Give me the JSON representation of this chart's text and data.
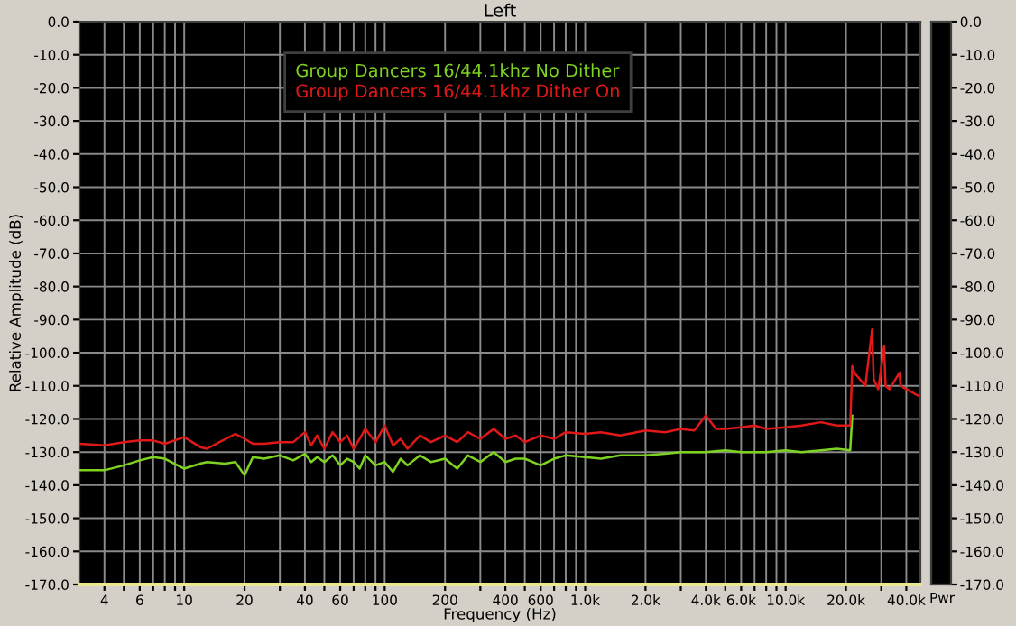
{
  "chart_data": {
    "type": "line",
    "title": "Left",
    "xlabel": "Frequency (Hz)",
    "ylabel": "Relative Amplitude (dB)",
    "log": "x",
    "grid": true,
    "legend": "top",
    "line_style": "solid",
    "marker": "none",
    "xlim": [
      3,
      47000
    ],
    "xticks": [
      {
        "value": 4,
        "label": "4"
      },
      {
        "value": 5,
        "label": null
      },
      {
        "value": 6,
        "label": "6"
      },
      {
        "value": 7,
        "label": null
      },
      {
        "value": 8,
        "label": null
      },
      {
        "value": 9,
        "label": null
      },
      {
        "value": 10,
        "label": "10"
      },
      {
        "value": 20,
        "label": "20"
      },
      {
        "value": 30,
        "label": null
      },
      {
        "value": 40,
        "label": "40"
      },
      {
        "value": 50,
        "label": null
      },
      {
        "value": 60,
        "label": "60"
      },
      {
        "value": 70,
        "label": null
      },
      {
        "value": 80,
        "label": null
      },
      {
        "value": 90,
        "label": null
      },
      {
        "value": 100,
        "label": "100"
      },
      {
        "value": 200,
        "label": "200"
      },
      {
        "value": 300,
        "label": null
      },
      {
        "value": 400,
        "label": "400"
      },
      {
        "value": 500,
        "label": null
      },
      {
        "value": 600,
        "label": "600"
      },
      {
        "value": 700,
        "label": null
      },
      {
        "value": 800,
        "label": null
      },
      {
        "value": 900,
        "label": null
      },
      {
        "value": 1000,
        "label": "1.0k"
      },
      {
        "value": 2000,
        "label": "2.0k"
      },
      {
        "value": 3000,
        "label": null
      },
      {
        "value": 4000,
        "label": "4.0k"
      },
      {
        "value": 5000,
        "label": null
      },
      {
        "value": 6000,
        "label": "6.0k"
      },
      {
        "value": 7000,
        "label": null
      },
      {
        "value": 8000,
        "label": null
      },
      {
        "value": 9000,
        "label": null
      },
      {
        "value": 10000,
        "label": "10.0k"
      },
      {
        "value": 20000,
        "label": "20.0k"
      },
      {
        "value": 30000,
        "label": null
      },
      {
        "value": 40000,
        "label": "40.0k"
      }
    ],
    "ylim": [
      -170,
      0
    ],
    "yticks": [
      {
        "value": 0,
        "label": "0.0"
      },
      {
        "value": -10,
        "label": "-10.0"
      },
      {
        "value": -20,
        "label": "-20.0"
      },
      {
        "value": -30,
        "label": "-30.0"
      },
      {
        "value": -40,
        "label": "-40.0"
      },
      {
        "value": -50,
        "label": "-50.0"
      },
      {
        "value": -60,
        "label": "-60.0"
      },
      {
        "value": -70,
        "label": "-70.0"
      },
      {
        "value": -80,
        "label": "-80.0"
      },
      {
        "value": -90,
        "label": "-90.0"
      },
      {
        "value": -100,
        "label": "-100.0"
      },
      {
        "value": -110,
        "label": "-110.0"
      },
      {
        "value": -120,
        "label": "-120.0"
      },
      {
        "value": -130,
        "label": "-130.0"
      },
      {
        "value": -140,
        "label": "-140.0"
      },
      {
        "value": -150,
        "label": "-150.0"
      },
      {
        "value": -160,
        "label": "-160.0"
      },
      {
        "value": -170,
        "label": "-170.0"
      }
    ],
    "y2lim": [
      -170,
      0
    ],
    "y2ticks": [
      {
        "value": 0,
        "label": "0.0"
      },
      {
        "value": -10,
        "label": "-10.0"
      },
      {
        "value": -20,
        "label": "-20.0"
      },
      {
        "value": -30,
        "label": "-30.0"
      },
      {
        "value": -40,
        "label": "-40.0"
      },
      {
        "value": -50,
        "label": "-50.0"
      },
      {
        "value": -60,
        "label": "-60.0"
      },
      {
        "value": -70,
        "label": "-70.0"
      },
      {
        "value": -80,
        "label": "-80.0"
      },
      {
        "value": -90,
        "label": "-90.0"
      },
      {
        "value": -100,
        "label": "-100.0"
      },
      {
        "value": -110,
        "label": "-110.0"
      },
      {
        "value": -120,
        "label": "-120.0"
      },
      {
        "value": -130,
        "label": "-130.0"
      },
      {
        "value": -140,
        "label": "-140.0"
      },
      {
        "value": -150,
        "label": "-150.0"
      },
      {
        "value": -160,
        "label": "-160.0"
      },
      {
        "value": -170,
        "label": "-170.0"
      }
    ],
    "annotations": [
      "Pwr"
    ],
    "series": [
      {
        "name": "Group Dancers 16/44.1khz No Dither",
        "color": "#7ed321",
        "x": [
          3,
          4,
          5,
          6,
          7,
          8,
          10,
          12,
          13,
          16,
          18,
          20,
          22,
          25,
          30,
          35,
          40,
          43,
          46,
          50,
          55,
          60,
          65,
          70,
          75,
          80,
          90,
          100,
          110,
          120,
          130,
          150,
          170,
          200,
          230,
          260,
          300,
          350,
          400,
          450,
          500,
          600,
          700,
          800,
          1000,
          1200,
          1500,
          2000,
          2500,
          3000,
          4000,
          5000,
          6000,
          8000,
          10000,
          12000,
          15000,
          18000,
          21000,
          21500
        ],
        "values": [
          -135.5,
          -135.5,
          -134,
          -132.5,
          -131.5,
          -132,
          -135,
          -133.5,
          -133,
          -133.5,
          -133,
          -137,
          -131.5,
          -132,
          -131,
          -132.5,
          -130.5,
          -133,
          -131.5,
          -133,
          -131,
          -134,
          -132,
          -133,
          -135,
          -131,
          -134,
          -133,
          -136,
          -132,
          -134,
          -131,
          -133,
          -132,
          -135,
          -131,
          -133,
          -130,
          -133,
          -132,
          -132,
          -134,
          -132,
          -131,
          -131.5,
          -132,
          -131,
          -131,
          -130.5,
          -130,
          -130,
          -129.5,
          -130,
          -130,
          -129.5,
          -130,
          -129.5,
          -129,
          -129.5,
          -119
        ]
      },
      {
        "name": "Group Dancers 16/44.1khz Dither On",
        "color": "#e01818",
        "x": [
          3,
          4,
          5,
          6,
          7,
          8,
          10,
          12,
          13,
          15,
          18,
          20,
          22,
          25,
          30,
          35,
          40,
          43,
          46,
          50,
          55,
          60,
          65,
          70,
          75,
          80,
          90,
          100,
          110,
          120,
          130,
          150,
          170,
          200,
          230,
          260,
          300,
          350,
          400,
          450,
          500,
          600,
          700,
          800,
          1000,
          1200,
          1500,
          2000,
          2500,
          3000,
          3500,
          4000,
          4500,
          5000,
          6000,
          7000,
          8000,
          10000,
          12000,
          15000,
          18000,
          20000,
          21000,
          21500,
          22000,
          25000,
          27000,
          27500,
          29000,
          31000,
          31500,
          33000,
          37000,
          37500,
          40000,
          46000
        ],
        "values": [
          -127.5,
          -128,
          -127,
          -126.5,
          -126.5,
          -127.5,
          -125.5,
          -128.5,
          -129,
          -127,
          -124.5,
          -126,
          -127.5,
          -127.5,
          -127,
          -127,
          -124,
          -128,
          -125,
          -129,
          -124,
          -127,
          -125,
          -129,
          -126,
          -123,
          -127,
          -122,
          -128,
          -126,
          -129,
          -125,
          -127,
          -125,
          -127,
          -124,
          -126,
          -123,
          -126,
          -125,
          -127,
          -125,
          -126,
          -124,
          -124.5,
          -124,
          -125,
          -123.5,
          -124,
          -123,
          -123.5,
          -119,
          -123,
          -123,
          -122.5,
          -122,
          -123,
          -122.5,
          -122,
          -121,
          -122,
          -122,
          -122,
          -104,
          -106,
          -110,
          -93,
          -108,
          -111,
          -98,
          -110,
          -111,
          -106,
          -110,
          -111,
          -113
        ]
      }
    ]
  }
}
